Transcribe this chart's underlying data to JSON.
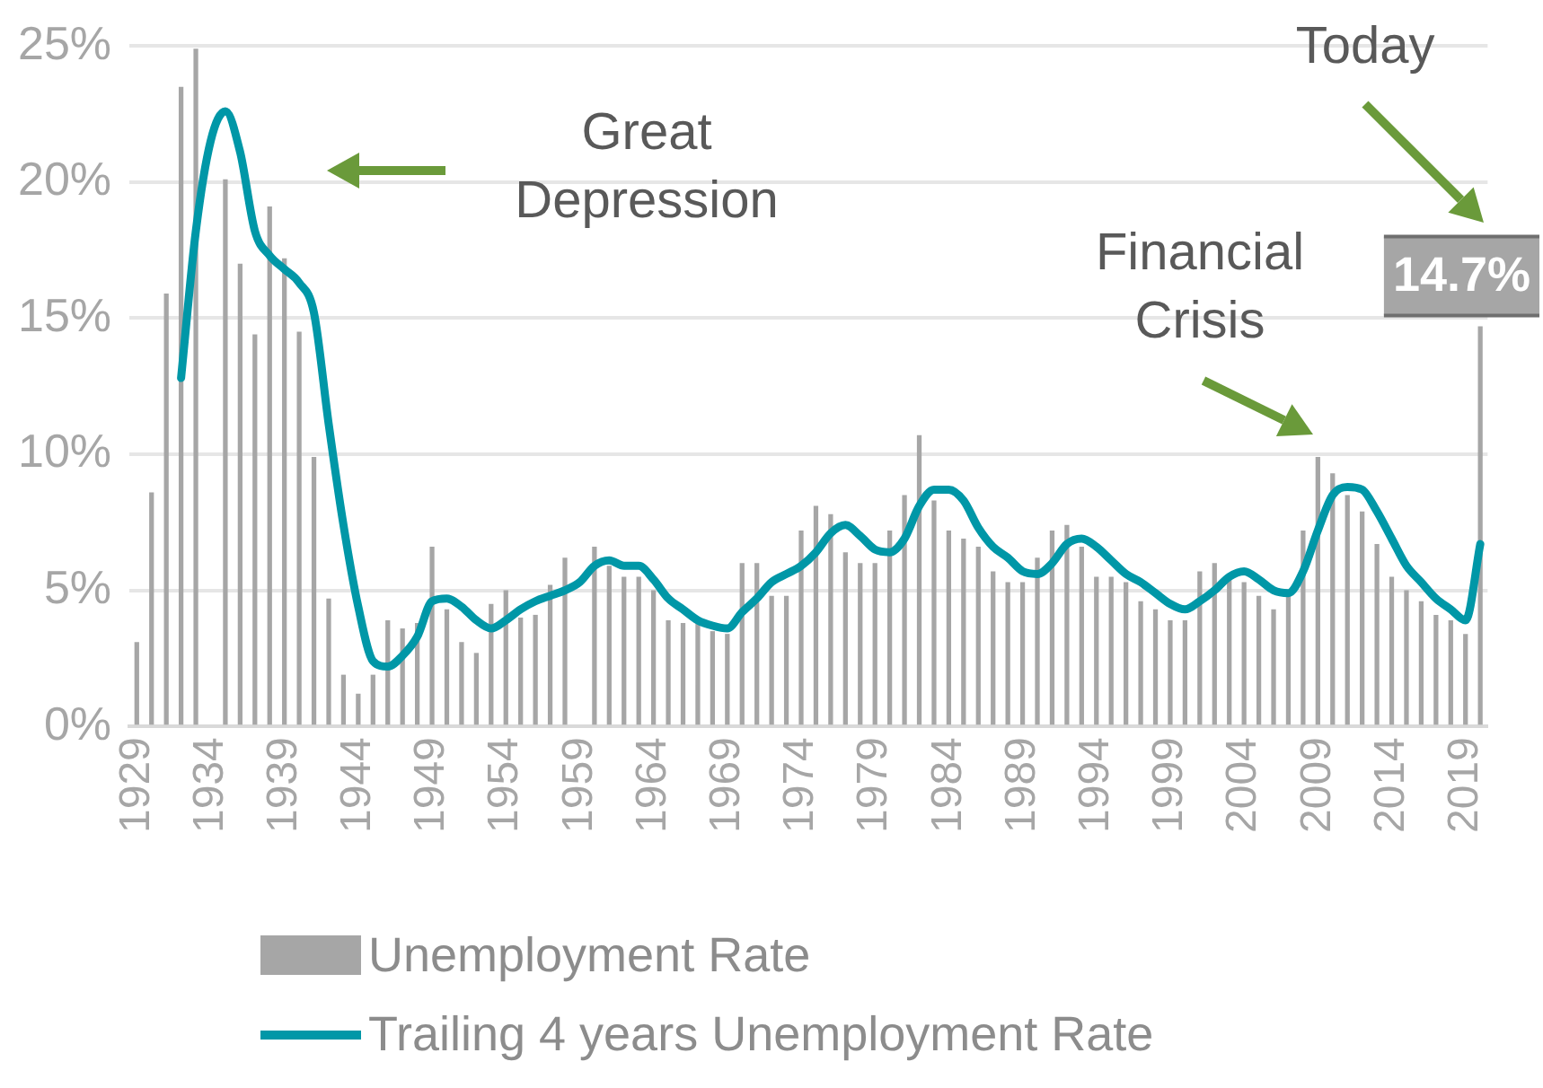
{
  "chart_data": {
    "type": "bar",
    "categories": [
      "1929",
      null,
      null,
      null,
      null,
      "1934",
      null,
      null,
      null,
      null,
      "1939",
      null,
      null,
      null,
      null,
      "1944",
      null,
      null,
      null,
      null,
      "1949",
      null,
      null,
      null,
      null,
      "1954",
      null,
      null,
      null,
      null,
      "1959",
      null,
      null,
      null,
      null,
      "1964",
      null,
      null,
      null,
      null,
      "1969",
      null,
      null,
      null,
      null,
      "1974",
      null,
      null,
      null,
      null,
      "1979",
      null,
      null,
      null,
      null,
      "1984",
      null,
      null,
      null,
      null,
      "1989",
      null,
      null,
      null,
      null,
      "1994",
      null,
      null,
      null,
      null,
      "1999",
      null,
      null,
      null,
      null,
      "2004",
      null,
      null,
      null,
      null,
      "2009",
      null,
      null,
      null,
      null,
      "2014",
      null,
      null,
      null,
      null,
      "2019",
      null
    ],
    "series": [
      {
        "name": "Unemployment Rate",
        "color": "#a6a6a6",
        "values": [
          3.1,
          8.6,
          15.9,
          23.5,
          24.9,
          null,
          20.1,
          17.0,
          14.4,
          19.1,
          17.2,
          14.5,
          9.9,
          4.7,
          1.9,
          1.2,
          1.9,
          3.9,
          3.6,
          3.8,
          6.6,
          4.3,
          3.1,
          2.7,
          4.5,
          5.0,
          4.0,
          4.1,
          5.2,
          6.2,
          null,
          6.6,
          5.9,
          5.5,
          5.5,
          5.0,
          3.9,
          3.8,
          3.8,
          3.5,
          3.4,
          6.0,
          6.0,
          4.8,
          4.8,
          7.2,
          8.1,
          7.8,
          6.4,
          6.0,
          6.0,
          7.2,
          8.5,
          10.7,
          8.3,
          7.2,
          6.9,
          6.6,
          5.7,
          5.3,
          5.3,
          6.2,
          7.2,
          7.4,
          6.6,
          5.5,
          5.5,
          5.3,
          4.6,
          4.3,
          3.9,
          3.9,
          5.7,
          6.0,
          5.6,
          5.3,
          4.8,
          4.3,
          4.8,
          7.2,
          9.9,
          9.3,
          8.5,
          7.9,
          6.7,
          5.5,
          5.0,
          4.6,
          4.1,
          3.9,
          3.4,
          14.7
        ],
        "value_labels": [
          null,
          null,
          null,
          null,
          null,
          null,
          null,
          null,
          null,
          null,
          null,
          null,
          null,
          null,
          null,
          null,
          null,
          null,
          null,
          null,
          null,
          null,
          null,
          null,
          null,
          null,
          null,
          null,
          null,
          null,
          null,
          null,
          null,
          null,
          null,
          null,
          null,
          null,
          null,
          null,
          null,
          null,
          null,
          null,
          null,
          null,
          null,
          null,
          null,
          null,
          null,
          null,
          null,
          null,
          null,
          null,
          null,
          null,
          null,
          null,
          null,
          null,
          null,
          null,
          null,
          null,
          null,
          null,
          null,
          null,
          null,
          null,
          null,
          null,
          null,
          null,
          null,
          null,
          null,
          null,
          null,
          null,
          null,
          null,
          null,
          null,
          null,
          null,
          null,
          null,
          null,
          "14.7%"
        ]
      },
      {
        "name": "Trailing 4 years Unemployment Rate",
        "type": "line",
        "color": "#0097a7",
        "values": [
          null,
          null,
          null,
          12.8,
          18.2,
          21.5,
          22.6,
          21.1,
          18.2,
          17.3,
          16.8,
          16.3,
          15.2,
          11.1,
          7.4,
          4.4,
          2.4,
          2.2,
          2.6,
          3.3,
          4.6,
          4.7,
          4.4,
          3.9,
          3.6,
          3.9,
          4.3,
          4.6,
          4.8,
          5.0,
          5.3,
          5.9,
          6.1,
          5.9,
          5.9,
          5.4,
          4.7,
          4.3,
          3.9,
          3.7,
          3.6,
          4.2,
          4.7,
          5.3,
          5.6,
          5.9,
          6.4,
          7.1,
          7.4,
          7.0,
          6.5,
          6.4,
          6.9,
          8.1,
          8.7,
          8.7,
          8.3,
          7.3,
          6.6,
          6.2,
          5.7,
          5.6,
          6.0,
          6.7,
          6.9,
          6.6,
          6.1,
          5.6,
          5.3,
          4.9,
          4.5,
          4.3,
          4.6,
          5.0,
          5.5,
          5.7,
          5.4,
          5.0,
          4.9,
          5.7,
          7.2,
          8.5,
          8.8,
          8.7,
          7.9,
          6.9,
          5.9,
          5.3,
          4.7,
          4.3,
          3.9,
          6.7
        ]
      }
    ],
    "ylim": [
      0,
      25
    ],
    "yticks": [
      {
        "value": 0,
        "label": "0%"
      },
      {
        "value": 5,
        "label": "5%"
      },
      {
        "value": 10,
        "label": "10%"
      },
      {
        "value": 15,
        "label": "15%"
      },
      {
        "value": 20,
        "label": "20%"
      },
      {
        "value": 25,
        "label": "25%"
      }
    ],
    "grid": "y",
    "legend": "bottom",
    "marker": "none",
    "line_style": "solid",
    "annotations": [
      "Great Depression",
      "Financial Crisis",
      "Today"
    ]
  }
}
